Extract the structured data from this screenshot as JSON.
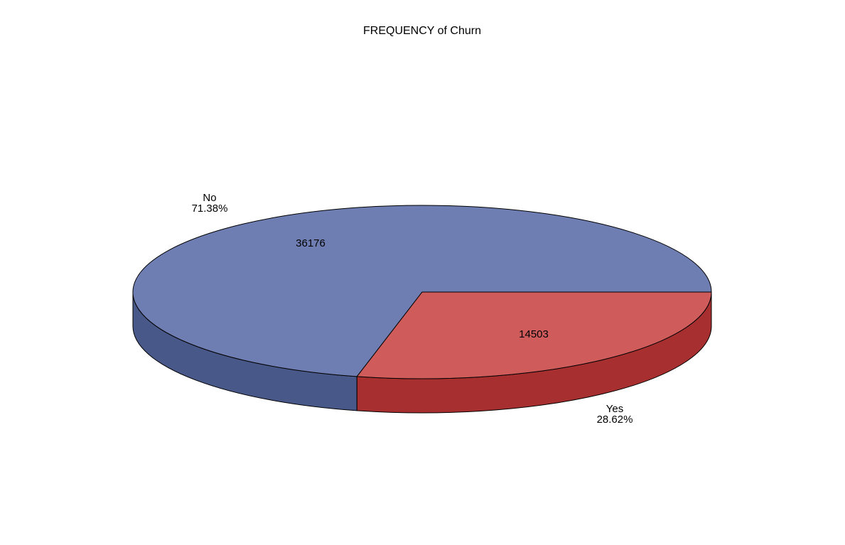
{
  "chart_data": {
    "type": "pie",
    "title": "FREQUENCY of Churn",
    "slices": [
      {
        "label": "No",
        "value": 36176,
        "percent_label": "71.38%",
        "color": "#6e7eb3",
        "side_color": "#485889"
      },
      {
        "label": "Yes",
        "value": 14503,
        "percent_label": "28.62%",
        "color": "#cf5b5b",
        "side_color": "#a82f2f"
      }
    ],
    "style": "3d",
    "legend": "none"
  }
}
